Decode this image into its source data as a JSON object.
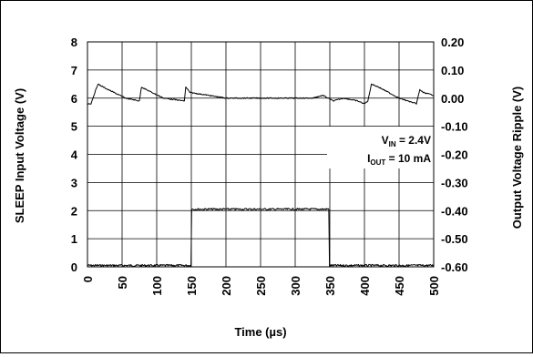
{
  "chart_data": {
    "type": "line",
    "xlabel": "Time (µs)",
    "ylabel_left": "SLEEP Input Voltage (V)",
    "ylabel_right": "Output Voltage Ripple (V)",
    "xlim": [
      0,
      500
    ],
    "ylim_left": [
      0,
      8
    ],
    "ylim_right": [
      -0.6,
      0.2
    ],
    "grid": true,
    "x_ticks": [
      "0",
      "50",
      "100",
      "150",
      "200",
      "250",
      "300",
      "350",
      "400",
      "450",
      "500"
    ],
    "y_left_ticks": [
      "0",
      "1",
      "2",
      "3",
      "4",
      "5",
      "6",
      "7",
      "8"
    ],
    "y_right_ticks": [
      "-0.60",
      "-0.50",
      "-0.40",
      "-0.30",
      "-0.20",
      "-0.10",
      "0.00",
      "0.10",
      "0.20"
    ],
    "annotation": {
      "vin_main": "V",
      "vin_sub": "IN",
      "vin_value": " = 2.4V",
      "iout_main": "I",
      "iout_sub": "OUT",
      "iout_value": " = 10 mA"
    },
    "series": [
      {
        "axis": "left",
        "x": [
          0,
          149.5,
          150.5,
          348.5,
          349.5,
          500
        ],
        "values": [
          0.05,
          0.05,
          2.05,
          2.05,
          0.05,
          0.05
        ]
      },
      {
        "axis": "right",
        "x": [
          0,
          5,
          15,
          30,
          55,
          75,
          78,
          85,
          110,
          140,
          142,
          148,
          175,
          200,
          225,
          250,
          275,
          300,
          325,
          340,
          355,
          370,
          390,
          400,
          405,
          410,
          420,
          450,
          475,
          480,
          485,
          500
        ],
        "values": [
          -0.02,
          -0.02,
          0.05,
          0.03,
          0.0,
          -0.01,
          0.04,
          0.03,
          0.0,
          -0.01,
          0.04,
          0.02,
          0.01,
          0.0,
          0.0,
          0.0,
          0.0,
          0.0,
          0.0,
          0.01,
          -0.01,
          0.0,
          -0.01,
          -0.02,
          -0.01,
          0.05,
          0.04,
          0.0,
          -0.02,
          0.03,
          0.02,
          0.01
        ]
      }
    ]
  }
}
